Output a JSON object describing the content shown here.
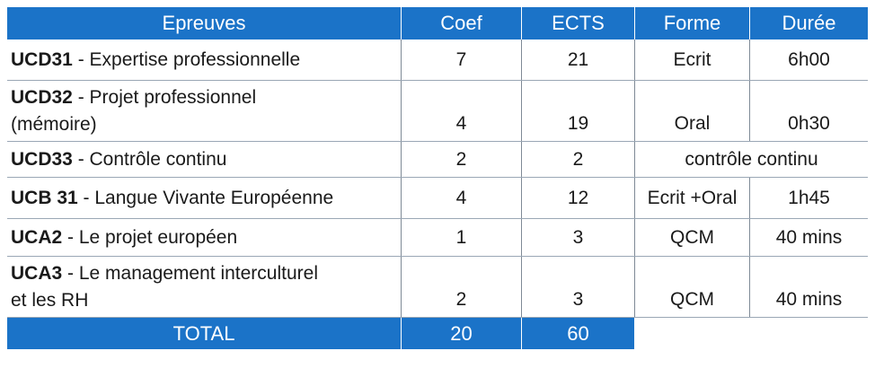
{
  "header": {
    "epreuves": "Epreuves",
    "coef": "Coef",
    "ects": "ECTS",
    "forme": "Forme",
    "duree": "Durée"
  },
  "rows": [
    {
      "code": "UCD31",
      "title": " - Expertise professionnelle",
      "title2": "",
      "coef": "7",
      "ects": "21",
      "forme": "Ecrit",
      "duree": "6h00"
    },
    {
      "code": "UCD32",
      "title": " - Projet professionnel",
      "title2": "(mémoire)",
      "coef": "4",
      "ects": "19",
      "forme": "Oral",
      "duree": "0h30"
    },
    {
      "code": "UCD33",
      "title": " - Contrôle continu",
      "title2": "",
      "coef": "2",
      "ects": "2",
      "forme": "contrôle continu",
      "duree": ""
    },
    {
      "code": "UCB 31",
      "title": " - Langue Vivante Européenne",
      "title2": "",
      "coef": "4",
      "ects": "12",
      "forme": "Ecrit +Oral",
      "duree": "1h45"
    },
    {
      "code": "UCA2",
      "title": " - Le projet européen",
      "title2": "",
      "coef": "1",
      "ects": "3",
      "forme": "QCM",
      "duree": "40 mins"
    },
    {
      "code": "UCA3",
      "title": " - Le management interculturel",
      "title2": "et les RH",
      "coef": "2",
      "ects": "3",
      "forme": "QCM",
      "duree": "40 mins"
    }
  ],
  "total": {
    "label": "TOTAL",
    "coef": "20",
    "ects": "60"
  },
  "colors": {
    "header_bg": "#1b73c8",
    "header_text": "#ffffff"
  }
}
